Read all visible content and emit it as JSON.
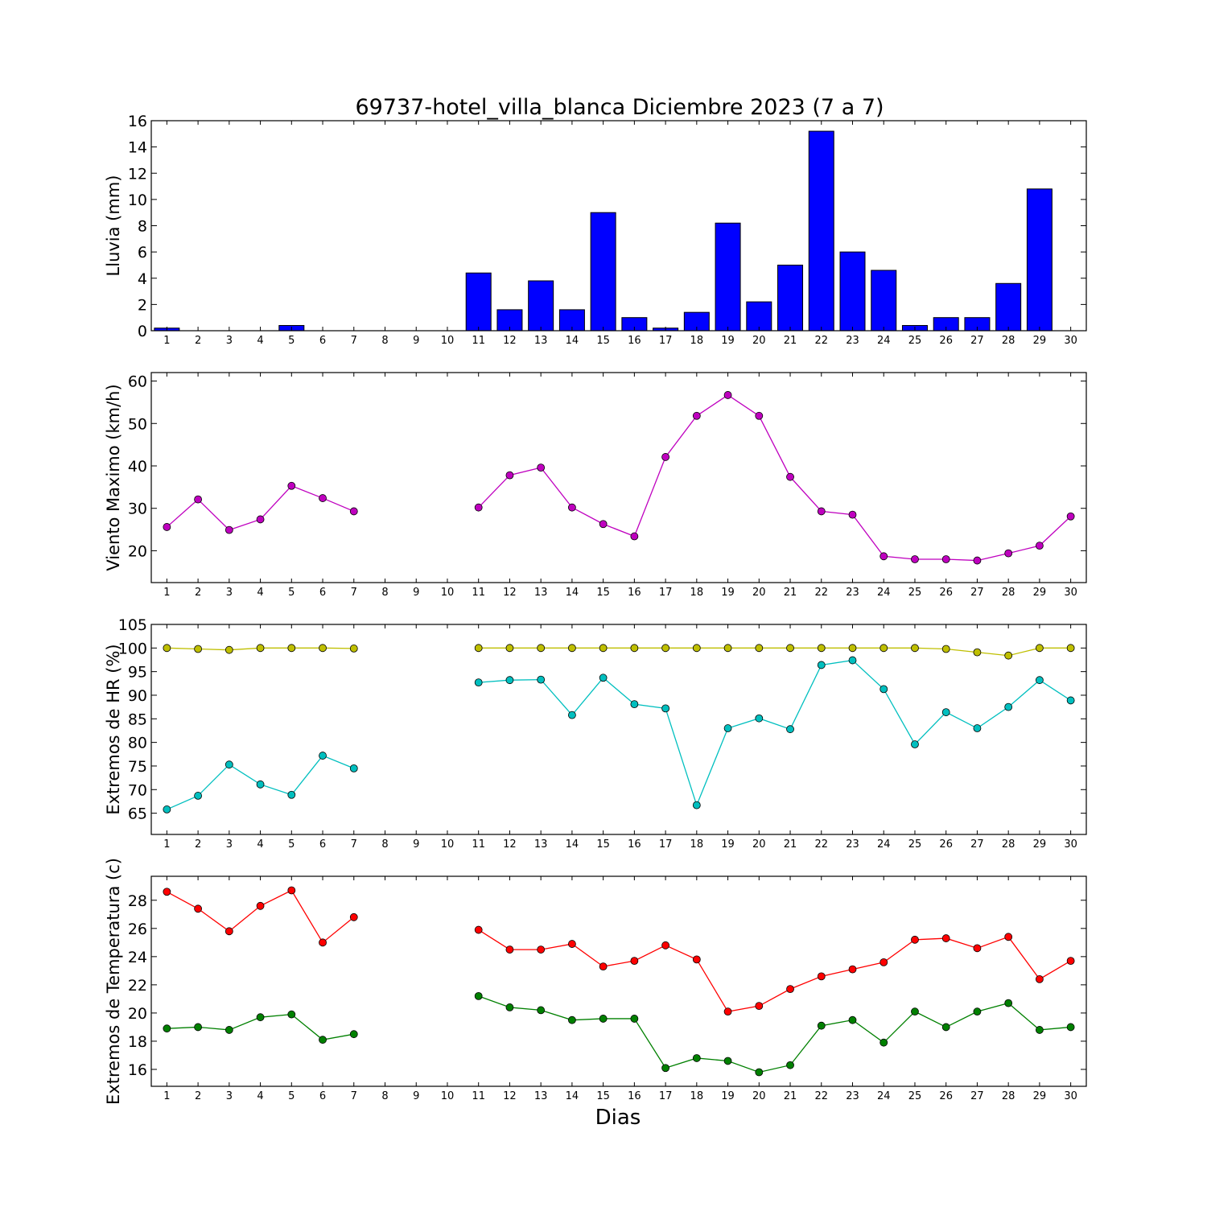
{
  "chart_data": {
    "type": "multi-panel",
    "title": "69737-hotel_villa_blanca Diciembre 2023  (7 a 7)",
    "xlabel": "Dias",
    "x": [
      1,
      2,
      3,
      4,
      5,
      6,
      7,
      8,
      9,
      10,
      11,
      12,
      13,
      14,
      15,
      16,
      17,
      18,
      19,
      20,
      21,
      22,
      23,
      24,
      25,
      26,
      27,
      28,
      29,
      30
    ],
    "panels": [
      {
        "type": "bar",
        "ylabel": "Lluvia (mm)",
        "ylim": [
          0,
          16
        ],
        "yticks": [
          0,
          2,
          4,
          6,
          8,
          10,
          12,
          14,
          16
        ],
        "bar_color": "#0000ff",
        "values": [
          0.2,
          0,
          0,
          0,
          0.4,
          0,
          0,
          0,
          0,
          0,
          4.4,
          1.6,
          3.8,
          1.6,
          9.0,
          1.0,
          0.2,
          1.4,
          8.2,
          2.2,
          5.0,
          15.2,
          6.0,
          4.6,
          0.4,
          1.0,
          1.0,
          3.6,
          10.8,
          0
        ]
      },
      {
        "type": "line",
        "ylabel": "Viento Maximo (km/h)",
        "ylim": [
          12.5,
          62
        ],
        "yticks": [
          20,
          30,
          40,
          50,
          60
        ],
        "series": [
          {
            "color": "#bf00bf",
            "values": [
              25.6,
              32.1,
              24.9,
              27.4,
              35.3,
              32.4,
              29.3,
              null,
              null,
              null,
              30.2,
              37.8,
              39.6,
              30.2,
              26.3,
              23.4,
              42.1,
              51.8,
              56.7,
              51.8,
              37.4,
              29.3,
              28.5,
              18.7,
              18.0,
              18.0,
              17.7,
              19.4,
              21.2,
              28.1
            ]
          }
        ]
      },
      {
        "type": "line",
        "ylabel": "Extremos de HR (%)",
        "ylim": [
          60.5,
          105
        ],
        "yticks": [
          65,
          70,
          75,
          80,
          85,
          90,
          95,
          100,
          105
        ],
        "series": [
          {
            "color": "#bfbf00",
            "values": [
              100,
              99.8,
              99.6,
              100,
              100,
              100,
              99.9,
              null,
              null,
              null,
              100,
              100,
              100,
              100,
              100,
              100,
              100,
              100,
              100,
              100,
              100,
              100,
              100,
              100,
              100,
              99.8,
              99.1,
              98.4,
              100,
              100
            ]
          },
          {
            "color": "#00bfbf",
            "values": [
              65.8,
              68.7,
              75.3,
              71.1,
              68.9,
              77.2,
              74.5,
              null,
              null,
              null,
              92.7,
              93.2,
              93.3,
              85.8,
              93.7,
              88.1,
              87.2,
              66.7,
              83.0,
              85.1,
              82.8,
              96.4,
              97.4,
              91.3,
              79.6,
              86.4,
              83.0,
              87.5,
              93.2,
              88.9
            ]
          }
        ]
      },
      {
        "type": "line",
        "ylabel": "Extremos de Temperatura (c)",
        "ylim": [
          14.8,
          29.7
        ],
        "yticks": [
          16,
          18,
          20,
          22,
          24,
          26,
          28
        ],
        "series": [
          {
            "color": "#ff0000",
            "values": [
              28.6,
              27.4,
              25.8,
              27.6,
              28.7,
              25.0,
              26.8,
              null,
              null,
              null,
              25.9,
              24.5,
              24.5,
              24.9,
              23.3,
              23.7,
              24.8,
              23.8,
              20.1,
              20.5,
              21.7,
              22.6,
              23.1,
              23.6,
              25.2,
              25.3,
              24.6,
              25.4,
              22.4,
              23.7
            ]
          },
          {
            "color": "#008000",
            "values": [
              18.9,
              19.0,
              18.8,
              19.7,
              19.9,
              18.1,
              18.5,
              null,
              null,
              null,
              21.2,
              20.4,
              20.2,
              19.5,
              19.6,
              19.6,
              16.1,
              16.8,
              16.6,
              15.8,
              16.3,
              19.1,
              19.5,
              17.9,
              20.1,
              19.0,
              20.1,
              20.7,
              18.8,
              19.0
            ]
          }
        ]
      }
    ]
  }
}
